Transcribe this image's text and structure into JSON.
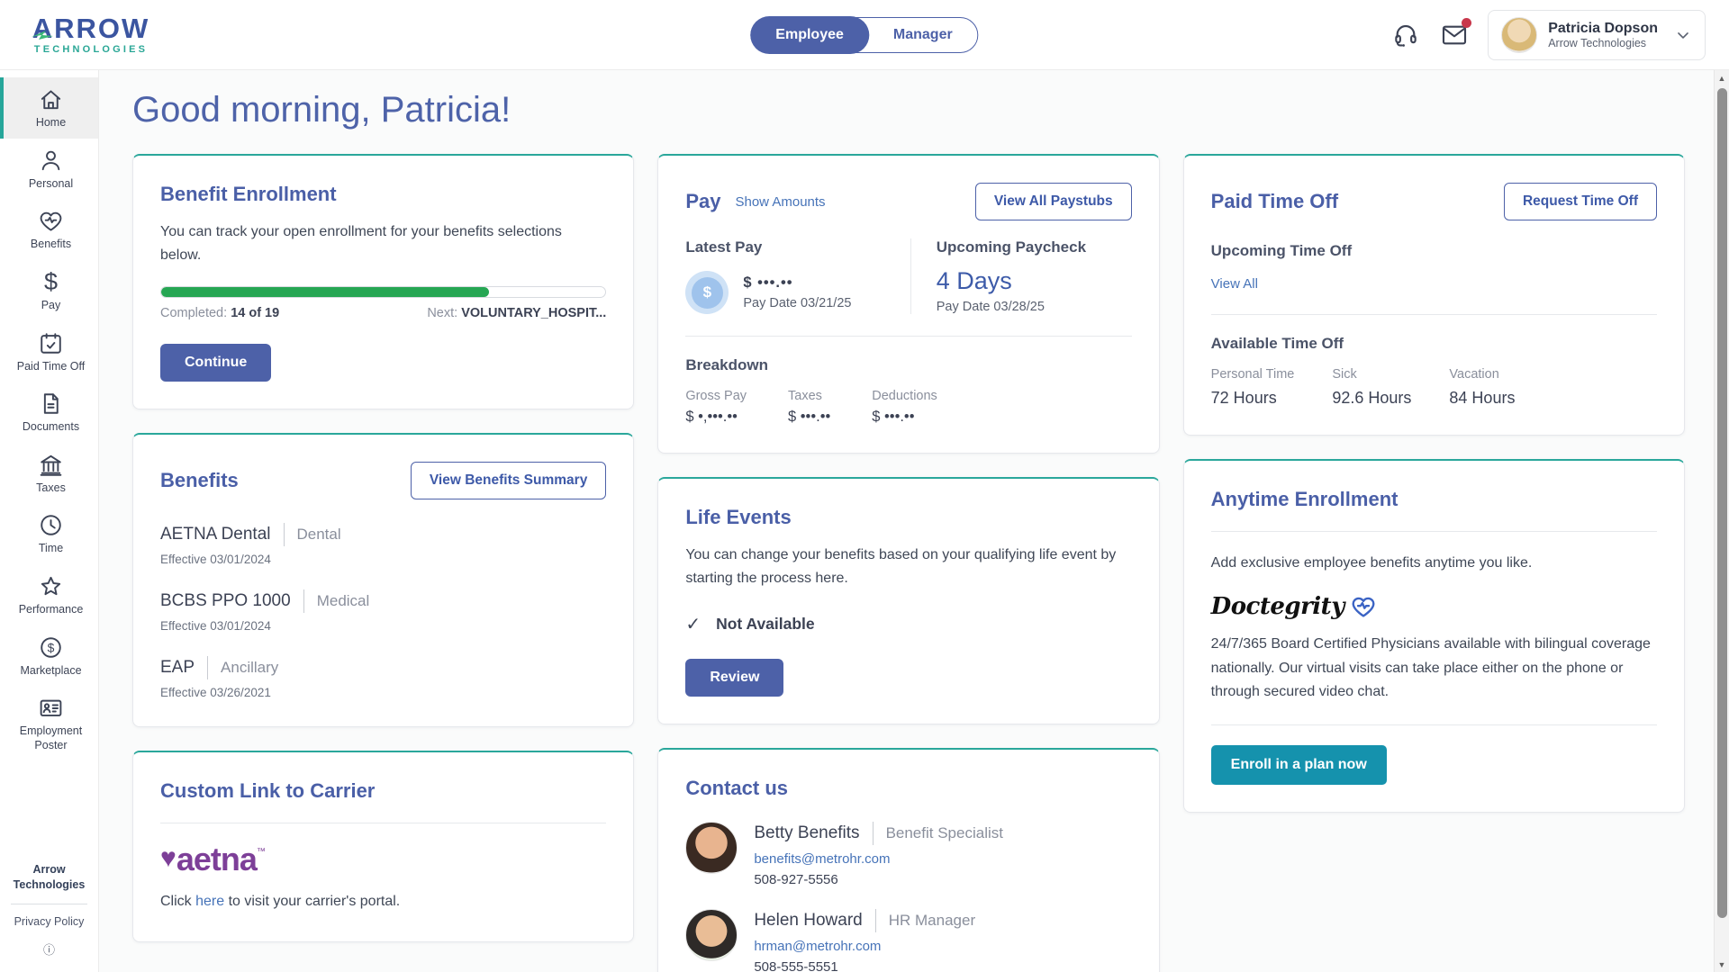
{
  "header": {
    "logo_line1": "ARROW",
    "logo_line2": "TECHNOLOGIES",
    "toggle": {
      "employee": "Employee",
      "manager": "Manager"
    },
    "user_name": "Patricia Dopson",
    "user_company": "Arrow Technologies"
  },
  "sidebar": {
    "items": [
      {
        "label": "Home"
      },
      {
        "label": "Personal"
      },
      {
        "label": "Benefits"
      },
      {
        "label": "Pay"
      },
      {
        "label": "Paid Time Off"
      },
      {
        "label": "Documents"
      },
      {
        "label": "Taxes"
      },
      {
        "label": "Time"
      },
      {
        "label": "Performance"
      },
      {
        "label": "Marketplace"
      },
      {
        "label": "Employment Poster"
      }
    ],
    "footer_company": "Arrow Technologies",
    "privacy": "Privacy Policy"
  },
  "greeting": "Good morning, Patricia!",
  "benefit_enrollment": {
    "title": "Benefit Enrollment",
    "description": "You can track your open enrollment for your benefits selections below.",
    "completed_label": "Completed: ",
    "completed_value": "14 of 19",
    "progress_percent": 73.7,
    "next_label": "Next: ",
    "next_value": "VOLUNTARY_HOSPIT...",
    "continue_label": "Continue"
  },
  "pay": {
    "title": "Pay",
    "show_amounts": "Show Amounts",
    "view_all_paystubs": "View All Paystubs",
    "latest_pay_label": "Latest Pay",
    "latest_amount": "$ •••.••",
    "latest_date": "Pay Date 03/21/25",
    "upcoming_label": "Upcoming Paycheck",
    "upcoming_days": "4 Days",
    "upcoming_date": "Pay Date 03/28/25",
    "breakdown_label": "Breakdown",
    "breakdown": [
      {
        "label": "Gross Pay",
        "value": "$ •,•••.••"
      },
      {
        "label": "Taxes",
        "value": "$ •••.••"
      },
      {
        "label": "Deductions",
        "value": "$ •••.••"
      }
    ]
  },
  "pto": {
    "title": "Paid Time Off",
    "request_button": "Request Time Off",
    "upcoming_label": "Upcoming Time Off",
    "view_all": "View All",
    "available_label": "Available Time Off",
    "balances": [
      {
        "label": "Personal Time",
        "value": "72 Hours"
      },
      {
        "label": "Sick",
        "value": "92.6 Hours"
      },
      {
        "label": "Vacation",
        "value": "84 Hours"
      }
    ]
  },
  "benefits": {
    "title": "Benefits",
    "summary_button": "View Benefits Summary",
    "plans": [
      {
        "name": "AETNA Dental",
        "category": "Dental",
        "effective": "Effective 03/01/2024"
      },
      {
        "name": "BCBS PPO 1000",
        "category": "Medical",
        "effective": "Effective 03/01/2024"
      },
      {
        "name": "EAP",
        "category": "Ancillary",
        "effective": "Effective 03/26/2021"
      }
    ]
  },
  "life_events": {
    "title": "Life Events",
    "description": "You can change your benefits based on your qualifying life event by starting the process here.",
    "status": "Not Available",
    "review_button": "Review"
  },
  "anytime_enrollment": {
    "title": "Anytime Enrollment",
    "intro": "Add exclusive employee benefits anytime you like.",
    "brand": "Doctegrity",
    "description": "24/7/365 Board Certified Physicians available with bilingual coverage nationally. Our virtual visits can take place either on the phone or through secured video chat.",
    "enroll_button": "Enroll in a plan now"
  },
  "carrier_link": {
    "title": "Custom Link to Carrier",
    "brand": "aetna",
    "text_before": "Click ",
    "link_text": "here",
    "text_after": " to visit your carrier's portal."
  },
  "contact_us": {
    "title": "Contact us",
    "contacts": [
      {
        "name": "Betty Benefits",
        "role": "Benefit Specialist",
        "email": "benefits@metrohr.com",
        "phone": "508-927-5556"
      },
      {
        "name": "Helen Howard",
        "role": "HR Manager",
        "email": "hrman@metrohr.com",
        "phone": "508-555-5551"
      }
    ]
  },
  "icons": {
    "dollar": "$",
    "check": "✓",
    "heart": "♥",
    "trademark": "™",
    "info": "ⓘ",
    "scroll_up": "▲",
    "scroll_down": "▼"
  },
  "colors": {
    "primary_blue": "#4d61a8",
    "heading_blue": "#4a5fa7",
    "link_blue": "#4673b8",
    "teal_accent": "#2aa79b",
    "teal_button": "#1592ad",
    "progress_green": "#26a653",
    "aetna_purple": "#7d3f98",
    "notification_red": "#c8374b"
  }
}
